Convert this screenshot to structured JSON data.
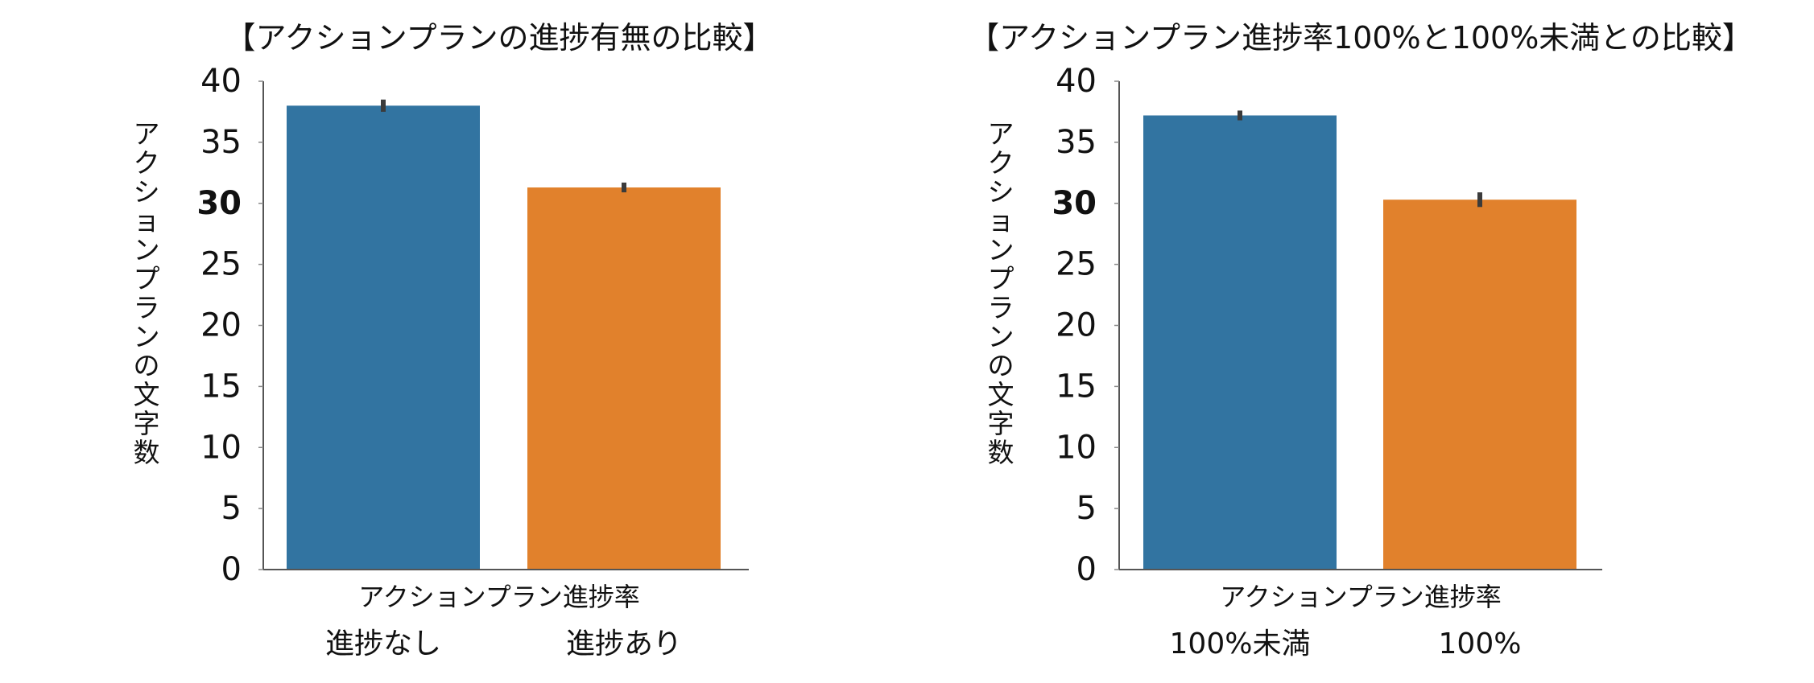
{
  "chart_data": [
    {
      "type": "bar",
      "title": "【アクションプランの進捗有無の比較】",
      "xlabel": "アクションプラン進捗率",
      "ylabel": "アクションプランの文字数",
      "categories": [
        "進捗なし",
        "進捗あり"
      ],
      "values": [
        38.0,
        31.3
      ],
      "error": [
        0.5,
        0.4
      ],
      "colors": [
        "#3274a1",
        "#e1812c"
      ],
      "ylim": [
        0,
        40
      ],
      "yticks": [
        "0",
        "5",
        "10",
        "15",
        "20",
        "25",
        "30",
        "35",
        "40"
      ],
      "bold_tick": "30",
      "grid": false,
      "legend": "none"
    },
    {
      "type": "bar",
      "title": "【アクションプラン進捗率100%と100%未満との比較】",
      "xlabel": "アクションプラン進捗率",
      "ylabel": "アクションプランの文字数",
      "categories": [
        "100%未満",
        "100%"
      ],
      "values": [
        37.2,
        30.3
      ],
      "error": [
        0.4,
        0.6
      ],
      "colors": [
        "#3274a1",
        "#e1812c"
      ],
      "ylim": [
        0,
        40
      ],
      "yticks": [
        "0",
        "5",
        "10",
        "15",
        "20",
        "25",
        "30",
        "35",
        "40"
      ],
      "bold_tick": "30",
      "grid": false,
      "legend": "none"
    }
  ]
}
